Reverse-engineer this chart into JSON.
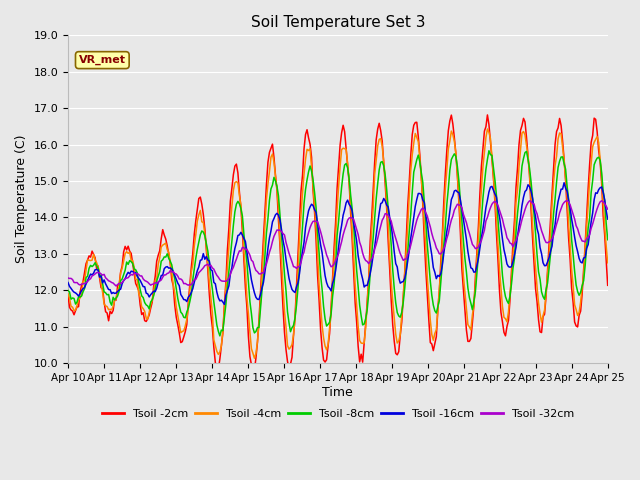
{
  "title": "Soil Temperature Set 3",
  "xlabel": "Time",
  "ylabel": "Soil Temperature (C)",
  "ylim": [
    10.0,
    19.0
  ],
  "yticks": [
    10.0,
    11.0,
    12.0,
    13.0,
    14.0,
    15.0,
    16.0,
    17.0,
    18.0,
    19.0
  ],
  "xtick_labels": [
    "Apr 10",
    "Apr 11",
    "Apr 12",
    "Apr 13",
    "Apr 14",
    "Apr 15",
    "Apr 16",
    "Apr 17",
    "Apr 18",
    "Apr 19",
    "Apr 20",
    "Apr 21",
    "Apr 22",
    "Apr 23",
    "Apr 24",
    "Apr 25"
  ],
  "series_colors": {
    "Tsoil -2cm": "#ff0000",
    "Tsoil -4cm": "#ff8800",
    "Tsoil -8cm": "#00cc00",
    "Tsoil -16cm": "#0000dd",
    "Tsoil -32cm": "#aa00cc"
  },
  "annotation_text": "VR_met",
  "bg_color": "#e8e8e8",
  "plot_bg_color": "#e8e8e8",
  "grid_color": "#ffffff",
  "n_points": 360
}
